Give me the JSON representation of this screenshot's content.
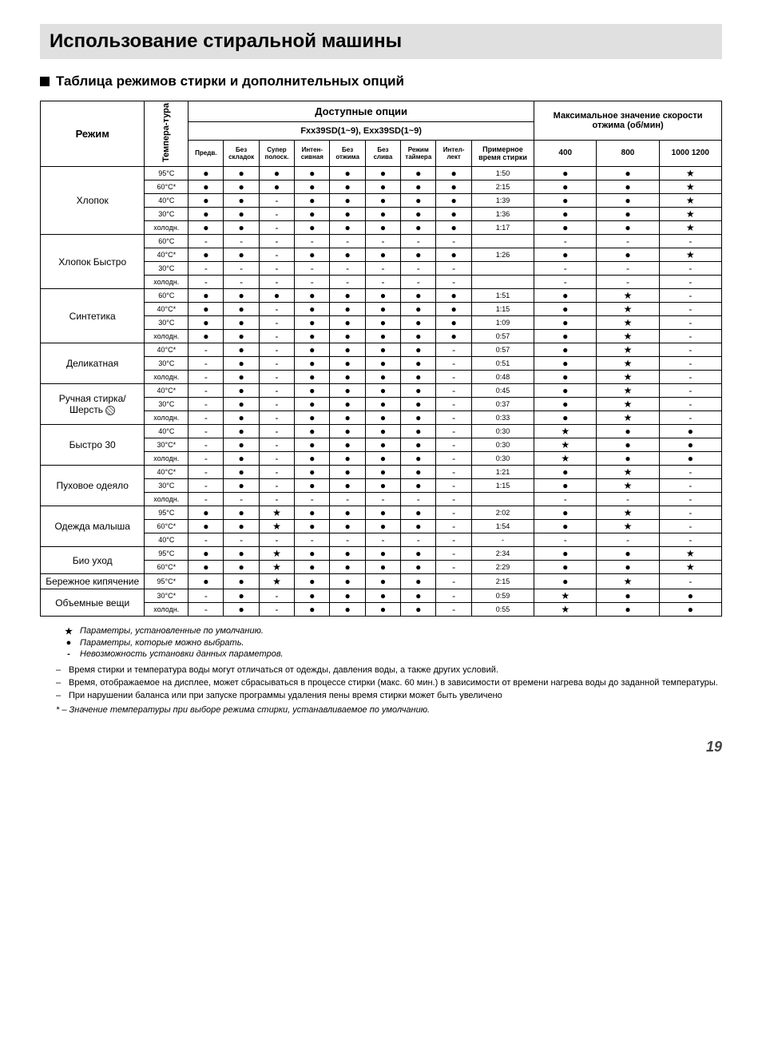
{
  "title": "Использование стиральной машины",
  "subtitle": "Таблица режимов стирки и дополнительных опций",
  "table": {
    "headers": {
      "mode": "Режим",
      "temp": "Темпера-тура",
      "options_group": "Доступные опции",
      "models": "Fxx39SD(1~9), Exx39SD(1~9)",
      "spin_group": "Максимальное значение скорости отжима (об/мин)",
      "option_cols": [
        "Предв.",
        "Без складок",
        "Супер полоск.",
        "Интен-сивная",
        "Без отжима",
        "Без слива",
        "Режим таймера",
        "Интел-лект"
      ],
      "time_col": "Примерное время стирки",
      "spin_cols": [
        "400",
        "800",
        "1000 1200"
      ]
    },
    "modes": [
      {
        "name": "Хлопок",
        "rows": [
          {
            "temp": "95°C",
            "opts": [
              "●",
              "●",
              "●",
              "●",
              "●",
              "●",
              "●",
              "●"
            ],
            "time": "1:50",
            "spin": [
              "●",
              "●",
              "★"
            ]
          },
          {
            "temp": "60°C*",
            "opts": [
              "●",
              "●",
              "●",
              "●",
              "●",
              "●",
              "●",
              "●"
            ],
            "time": "2:15",
            "spin": [
              "●",
              "●",
              "★"
            ]
          },
          {
            "temp": "40°C",
            "opts": [
              "●",
              "●",
              "-",
              "●",
              "●",
              "●",
              "●",
              "●"
            ],
            "time": "1:39",
            "spin": [
              "●",
              "●",
              "★"
            ]
          },
          {
            "temp": "30°C",
            "opts": [
              "●",
              "●",
              "-",
              "●",
              "●",
              "●",
              "●",
              "●"
            ],
            "time": "1:36",
            "spin": [
              "●",
              "●",
              "★"
            ]
          },
          {
            "temp": "холодн.",
            "opts": [
              "●",
              "●",
              "-",
              "●",
              "●",
              "●",
              "●",
              "●"
            ],
            "time": "1:17",
            "spin": [
              "●",
              "●",
              "★"
            ]
          }
        ]
      },
      {
        "name": "Хлопок Быстро",
        "rows": [
          {
            "temp": "60°C",
            "opts": [
              "-",
              "-",
              "-",
              "-",
              "-",
              "-",
              "-",
              "-"
            ],
            "time": "",
            "spin": [
              "-",
              "-",
              "-"
            ]
          },
          {
            "temp": "40°C*",
            "opts": [
              "●",
              "●",
              "-",
              "●",
              "●",
              "●",
              "●",
              "●"
            ],
            "time": "1:26",
            "spin": [
              "●",
              "●",
              "★"
            ]
          },
          {
            "temp": "30°C",
            "opts": [
              "-",
              "-",
              "-",
              "-",
              "-",
              "-",
              "-",
              "-"
            ],
            "time": "",
            "spin": [
              "-",
              "-",
              "-"
            ]
          },
          {
            "temp": "холодн.",
            "opts": [
              "-",
              "-",
              "-",
              "-",
              "-",
              "-",
              "-",
              "-"
            ],
            "time": "",
            "spin": [
              "-",
              "-",
              "-"
            ]
          }
        ]
      },
      {
        "name": "Синтетика",
        "rows": [
          {
            "temp": "60°C",
            "opts": [
              "●",
              "●",
              "●",
              "●",
              "●",
              "●",
              "●",
              "●"
            ],
            "time": "1:51",
            "spin": [
              "●",
              "★",
              "-"
            ]
          },
          {
            "temp": "40°C*",
            "opts": [
              "●",
              "●",
              "-",
              "●",
              "●",
              "●",
              "●",
              "●"
            ],
            "time": "1:15",
            "spin": [
              "●",
              "★",
              "-"
            ]
          },
          {
            "temp": "30°C",
            "opts": [
              "●",
              "●",
              "-",
              "●",
              "●",
              "●",
              "●",
              "●"
            ],
            "time": "1:09",
            "spin": [
              "●",
              "★",
              "-"
            ]
          },
          {
            "temp": "холодн.",
            "opts": [
              "●",
              "●",
              "-",
              "●",
              "●",
              "●",
              "●",
              "●"
            ],
            "time": "0:57",
            "spin": [
              "●",
              "★",
              "-"
            ]
          }
        ]
      },
      {
        "name": "Деликатная",
        "rows": [
          {
            "temp": "40°C*",
            "opts": [
              "-",
              "●",
              "-",
              "●",
              "●",
              "●",
              "●",
              "-"
            ],
            "time": "0:57",
            "spin": [
              "●",
              "★",
              "-"
            ]
          },
          {
            "temp": "30°C",
            "opts": [
              "-",
              "●",
              "-",
              "●",
              "●",
              "●",
              "●",
              "-"
            ],
            "time": "0:51",
            "spin": [
              "●",
              "★",
              "-"
            ]
          },
          {
            "temp": "холодн.",
            "opts": [
              "-",
              "●",
              "-",
              "●",
              "●",
              "●",
              "●",
              "-"
            ],
            "time": "0:48",
            "spin": [
              "●",
              "★",
              "-"
            ]
          }
        ]
      },
      {
        "name": "Ручная стирка/ Шерсть",
        "icon": "wool",
        "rows": [
          {
            "temp": "40°C*",
            "opts": [
              "-",
              "●",
              "-",
              "●",
              "●",
              "●",
              "●",
              "-"
            ],
            "time": "0:45",
            "spin": [
              "●",
              "★",
              "-"
            ]
          },
          {
            "temp": "30°C",
            "opts": [
              "-",
              "●",
              "-",
              "●",
              "●",
              "●",
              "●",
              "-"
            ],
            "time": "0:37",
            "spin": [
              "●",
              "★",
              "-"
            ]
          },
          {
            "temp": "холодн.",
            "opts": [
              "-",
              "●",
              "-",
              "●",
              "●",
              "●",
              "●",
              "-"
            ],
            "time": "0:33",
            "spin": [
              "●",
              "★",
              "-"
            ]
          }
        ]
      },
      {
        "name": "Быстро 30",
        "rows": [
          {
            "temp": "40°C",
            "opts": [
              "-",
              "●",
              "-",
              "●",
              "●",
              "●",
              "●",
              "-"
            ],
            "time": "0:30",
            "spin": [
              "★",
              "●",
              "●"
            ]
          },
          {
            "temp": "30°C*",
            "opts": [
              "-",
              "●",
              "-",
              "●",
              "●",
              "●",
              "●",
              "-"
            ],
            "time": "0:30",
            "spin": [
              "★",
              "●",
              "●"
            ]
          },
          {
            "temp": "холодн.",
            "opts": [
              "-",
              "●",
              "-",
              "●",
              "●",
              "●",
              "●",
              "-"
            ],
            "time": "0:30",
            "spin": [
              "★",
              "●",
              "●"
            ]
          }
        ]
      },
      {
        "name": "Пуховое одеяло",
        "rows": [
          {
            "temp": "40°C*",
            "opts": [
              "-",
              "●",
              "-",
              "●",
              "●",
              "●",
              "●",
              "-"
            ],
            "time": "1:21",
            "spin": [
              "●",
              "★",
              "-"
            ]
          },
          {
            "temp": "30°C",
            "opts": [
              "-",
              "●",
              "-",
              "●",
              "●",
              "●",
              "●",
              "-"
            ],
            "time": "1:15",
            "spin": [
              "●",
              "★",
              "-"
            ]
          },
          {
            "temp": "холодн.",
            "opts": [
              "-",
              "-",
              "-",
              "-",
              "-",
              "-",
              "-",
              "-"
            ],
            "time": "",
            "spin": [
              "-",
              "-",
              "-"
            ]
          }
        ]
      },
      {
        "name": "Одежда малыша",
        "icon": "baby",
        "rows": [
          {
            "temp": "95°C",
            "opts": [
              "●",
              "●",
              "★",
              "●",
              "●",
              "●",
              "●",
              "-"
            ],
            "time": "2:02",
            "spin": [
              "●",
              "★",
              "-"
            ]
          },
          {
            "temp": "60°C*",
            "opts": [
              "●",
              "●",
              "★",
              "●",
              "●",
              "●",
              "●",
              "-"
            ],
            "time": "1:54",
            "spin": [
              "●",
              "★",
              "-"
            ]
          },
          {
            "temp": "40°C",
            "opts": [
              "-",
              "-",
              "-",
              "-",
              "-",
              "-",
              "-",
              "-"
            ],
            "time": "-",
            "spin": [
              "-",
              "-",
              "-"
            ]
          }
        ]
      },
      {
        "name": "Био уход",
        "rows": [
          {
            "temp": "95°C",
            "opts": [
              "●",
              "●",
              "★",
              "●",
              "●",
              "●",
              "●",
              "-"
            ],
            "time": "2:34",
            "spin": [
              "●",
              "●",
              "★"
            ]
          },
          {
            "temp": "60°C*",
            "opts": [
              "●",
              "●",
              "★",
              "●",
              "●",
              "●",
              "●",
              "-"
            ],
            "time": "2:29",
            "spin": [
              "●",
              "●",
              "★"
            ]
          }
        ]
      },
      {
        "name": "Бережное кипячение",
        "rows": [
          {
            "temp": "95°C*",
            "opts": [
              "●",
              "●",
              "★",
              "●",
              "●",
              "●",
              "●",
              "-"
            ],
            "time": "2:15",
            "spin": [
              "●",
              "★",
              "-"
            ]
          }
        ]
      },
      {
        "name": "Объемные вещи",
        "rows": [
          {
            "temp": "30°C*",
            "opts": [
              "-",
              "●",
              "-",
              "●",
              "●",
              "●",
              "●",
              "-"
            ],
            "time": "0:59",
            "spin": [
              "★",
              "●",
              "●"
            ]
          },
          {
            "temp": "холодн.",
            "opts": [
              "-",
              "●",
              "-",
              "●",
              "●",
              "●",
              "●",
              "-"
            ],
            "time": "0:55",
            "spin": [
              "★",
              "●",
              "●"
            ]
          }
        ]
      }
    ]
  },
  "legend": [
    {
      "sym": "★",
      "text": "Параметры, установленные по умолчанию."
    },
    {
      "sym": "●",
      "text": "Параметры, которые можно выбрать."
    },
    {
      "sym": "-",
      "text": "Невозможность установки данных параметров."
    }
  ],
  "notes": [
    "Время стирки и температура воды могут отличаться от одежды, давления воды, а также других условий.",
    "Время, отображаемое на дисплее, может сбрасываться в процессе стирки (макс. 60 мин.) в зависимости от времени нагрева воды до заданной температуры.",
    "При нарушении баланса или при запуске программы удаления пены время стирки может быть увеличено"
  ],
  "footnote": "* – Значение температуры при выборе режима стирки, устанавливаемое по умолчанию.",
  "page_number": "19"
}
